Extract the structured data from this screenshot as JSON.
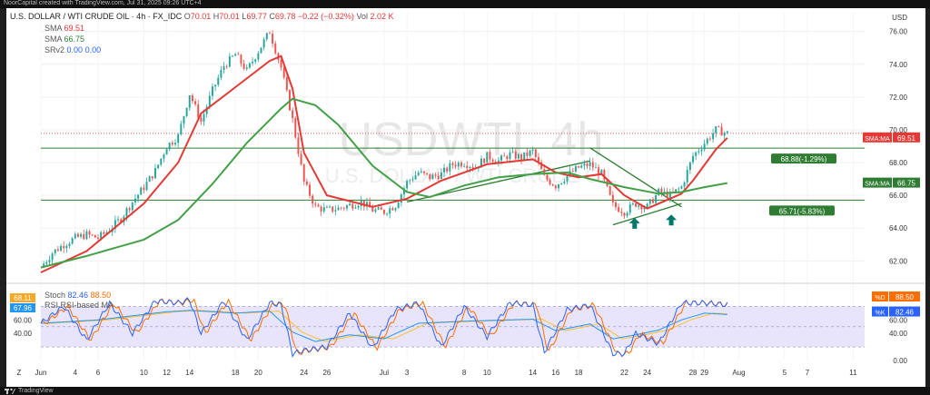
{
  "top_bar": {
    "text": "NoorCapital created with TradingView.com, Jul 31, 2025 09:26 UTC+4"
  },
  "header": {
    "symbol_line": "U.S. DOLLAR / WTI CRUDE OIL · 4h · FX_IDC",
    "ohlc": [
      {
        "k": "O",
        "v": "70.01"
      },
      {
        "k": "H",
        "v": "70.01"
      },
      {
        "k": "L",
        "v": "69.77"
      },
      {
        "k": "C",
        "v": "69.78"
      }
    ],
    "change": "−0.22 (−0.32%)",
    "vol_label": "Vol",
    "vol": "2.02 K",
    "sma1": {
      "label": "SMA",
      "value": "69.51"
    },
    "sma2": {
      "label": "SMA",
      "value": "66.75"
    },
    "srv2": {
      "label": "SRv2",
      "v1": "0.00",
      "v2": "0.00"
    },
    "stoch_line": {
      "label": "Stoch",
      "v1": "82.46",
      "v2": "88.50"
    },
    "rsi_line": {
      "label": "RSI",
      "ma_label": "RSI-based MA"
    }
  },
  "watermark": {
    "big": "USDWTI, 4h",
    "small": "U.S. DOLLAR / WTI CRUDE OIL"
  },
  "footer": {
    "brand": "TradingView"
  },
  "colors": {
    "candle_up": "#26a69a",
    "candle_down": "#ef5350",
    "sma_fast": "#e53935",
    "sma_slow": "#43a047",
    "level": "#2e7d32",
    "stoch_k": "#2962ff",
    "stoch_d": "#ff6d00",
    "rsi": "#2196f3",
    "rsi_ma": "#fbc02d"
  },
  "chart_data": {
    "type": "candlestick",
    "price_axis": {
      "unit": "USD",
      "range": [
        60.8,
        77.2
      ],
      "ticks": [
        62.0,
        64.0,
        66.0,
        68.0,
        70.0,
        72.0,
        74.0,
        76.0
      ]
    },
    "x_axis": {
      "range": [
        1,
        73
      ],
      "ticks": [
        {
          "x": 1,
          "label": "Jun"
        },
        {
          "x": 4,
          "label": "4"
        },
        {
          "x": 6,
          "label": "6"
        },
        {
          "x": 10,
          "label": "10"
        },
        {
          "x": 12,
          "label": "12"
        },
        {
          "x": 14,
          "label": "14"
        },
        {
          "x": 18,
          "label": "18"
        },
        {
          "x": 20,
          "label": "20"
        },
        {
          "x": 24,
          "label": "24"
        },
        {
          "x": 26,
          "label": "26"
        },
        {
          "x": 31,
          "label": "Jul"
        },
        {
          "x": 33,
          "label": "3"
        },
        {
          "x": 38,
          "label": "8"
        },
        {
          "x": 40,
          "label": "10"
        },
        {
          "x": 44,
          "label": "14"
        },
        {
          "x": 46,
          "label": "16"
        },
        {
          "x": 48,
          "label": "18"
        },
        {
          "x": 52,
          "label": "22"
        },
        {
          "x": 54,
          "label": "24"
        },
        {
          "x": 58,
          "label": "28"
        },
        {
          "x": 59,
          "label": "29"
        },
        {
          "x": 62,
          "label": "Aug"
        },
        {
          "x": 66,
          "label": "5"
        },
        {
          "x": 68,
          "label": "7"
        },
        {
          "x": 72,
          "label": "11"
        }
      ]
    },
    "price_anchors": [
      [
        1,
        61.6
      ],
      [
        2,
        62.5
      ],
      [
        3,
        63.0
      ],
      [
        4,
        63.4
      ],
      [
        5,
        63.6
      ],
      [
        6,
        63.4
      ],
      [
        7,
        63.9
      ],
      [
        8,
        64.6
      ],
      [
        9,
        65.6
      ],
      [
        10,
        66.5
      ],
      [
        11,
        67.5
      ],
      [
        12,
        69.0
      ],
      [
        13,
        69.6
      ],
      [
        14,
        72.2
      ],
      [
        15,
        70.5
      ],
      [
        16,
        72.4
      ],
      [
        17,
        73.9
      ],
      [
        18,
        74.6
      ],
      [
        19,
        73.6
      ],
      [
        20,
        74.8
      ],
      [
        21,
        76.0
      ],
      [
        22,
        73.8
      ],
      [
        23,
        70.6
      ],
      [
        24,
        66.8
      ],
      [
        25,
        65.3
      ],
      [
        26,
        65.1
      ],
      [
        27,
        65.2
      ],
      [
        28,
        65.4
      ],
      [
        29,
        65.6
      ],
      [
        30,
        65.1
      ],
      [
        31,
        65.0
      ],
      [
        32,
        65.4
      ],
      [
        33,
        66.8
      ],
      [
        34,
        67.4
      ],
      [
        35,
        67.1
      ],
      [
        36,
        67.3
      ],
      [
        37,
        67.9
      ],
      [
        38,
        68.0
      ],
      [
        39,
        67.7
      ],
      [
        40,
        68.4
      ],
      [
        41,
        68.1
      ],
      [
        42,
        68.5
      ],
      [
        43,
        68.3
      ],
      [
        44,
        68.7
      ],
      [
        45,
        67.1
      ],
      [
        46,
        66.6
      ],
      [
        47,
        67.2
      ],
      [
        48,
        67.7
      ],
      [
        49,
        67.9
      ],
      [
        50,
        67.3
      ],
      [
        51,
        65.4
      ],
      [
        52,
        65.0
      ],
      [
        53,
        65.5
      ],
      [
        54,
        65.3
      ],
      [
        55,
        66.2
      ],
      [
        56,
        66.0
      ],
      [
        57,
        66.5
      ],
      [
        58,
        68.4
      ],
      [
        59,
        69.2
      ],
      [
        60,
        70.0
      ],
      [
        61,
        69.78
      ]
    ],
    "series": [
      {
        "name": "SMA",
        "last": 69.51,
        "points": [
          [
            1,
            61.3
          ],
          [
            5,
            62.6
          ],
          [
            10,
            65.5
          ],
          [
            13,
            68.0
          ],
          [
            15,
            71.0
          ],
          [
            18,
            72.6
          ],
          [
            21,
            74.2
          ],
          [
            22,
            74.5
          ],
          [
            23,
            72.5
          ],
          [
            24,
            68.6
          ],
          [
            26,
            66.0
          ],
          [
            30,
            65.3
          ],
          [
            33,
            65.8
          ],
          [
            36,
            66.9
          ],
          [
            40,
            67.9
          ],
          [
            44,
            68.2
          ],
          [
            46,
            67.4
          ],
          [
            48,
            67.1
          ],
          [
            50,
            67.3
          ],
          [
            52,
            66.0
          ],
          [
            54,
            65.2
          ],
          [
            56,
            65.8
          ],
          [
            57,
            66.1
          ],
          [
            58,
            66.9
          ],
          [
            60,
            68.8
          ],
          [
            61,
            69.51
          ]
        ]
      },
      {
        "name": "SMA",
        "last": 66.75,
        "points": [
          [
            1,
            61.6
          ],
          [
            5,
            62.3
          ],
          [
            10,
            63.3
          ],
          [
            13,
            64.5
          ],
          [
            16,
            66.7
          ],
          [
            19,
            69.2
          ],
          [
            22,
            71.3
          ],
          [
            23,
            71.9
          ],
          [
            25,
            71.5
          ],
          [
            27,
            70.3
          ],
          [
            30,
            67.8
          ],
          [
            33,
            66.2
          ],
          [
            35,
            65.9
          ],
          [
            38,
            66.6
          ],
          [
            41,
            67.1
          ],
          [
            44,
            67.3
          ],
          [
            47,
            67.4
          ],
          [
            49,
            67.0
          ],
          [
            52,
            66.5
          ],
          [
            55,
            66.1
          ],
          [
            57,
            66.2
          ],
          [
            59,
            66.5
          ],
          [
            61,
            66.75
          ]
        ]
      }
    ],
    "horizontal_levels": [
      {
        "y": 68.88,
        "label": "68.88(-1.29%)"
      },
      {
        "y": 65.71,
        "label": "65.71(-5.83%)"
      }
    ],
    "trendlines": [
      [
        [
          49,
          68.9
        ],
        [
          57,
          65.3
        ]
      ],
      [
        [
          51,
          64.2
        ],
        [
          57,
          65.5
        ]
      ],
      [
        [
          33,
          65.6
        ],
        [
          49,
          68.1
        ]
      ]
    ],
    "arrows": [
      {
        "x": 52.9,
        "y": 64.3
      },
      {
        "x": 56.1,
        "y": 64.5
      }
    ],
    "price_labels": [
      {
        "label": "SMA:MA",
        "value": 69.51
      },
      {
        "label": "SMA:MA",
        "value": 66.75
      }
    ],
    "oscillator": {
      "range": [
        0,
        110
      ],
      "ticks": [
        0.0,
        40.0,
        60.0
      ],
      "band": [
        20,
        80
      ],
      "values": [
        {
          "name": "%D",
          "value": 88.5
        },
        {
          "name": "%K",
          "value": 82.46
        }
      ],
      "left_labels": [
        68.11,
        67.96,
        60.0,
        40.0
      ],
      "k_anchors": [
        [
          1,
          55
        ],
        [
          3,
          80
        ],
        [
          5,
          30
        ],
        [
          7,
          85
        ],
        [
          9,
          40
        ],
        [
          11,
          88
        ],
        [
          13,
          85
        ],
        [
          14,
          90
        ],
        [
          15,
          40
        ],
        [
          17,
          88
        ],
        [
          19,
          30
        ],
        [
          21,
          85
        ],
        [
          22,
          82
        ],
        [
          23,
          10
        ],
        [
          24,
          15
        ],
        [
          26,
          20
        ],
        [
          28,
          70
        ],
        [
          30,
          18
        ],
        [
          32,
          75
        ],
        [
          34,
          85
        ],
        [
          36,
          20
        ],
        [
          38,
          80
        ],
        [
          40,
          35
        ],
        [
          42,
          85
        ],
        [
          44,
          82
        ],
        [
          45,
          12
        ],
        [
          47,
          75
        ],
        [
          49,
          82
        ],
        [
          51,
          10
        ],
        [
          52,
          10
        ],
        [
          53,
          40
        ],
        [
          55,
          25
        ],
        [
          57,
          85
        ],
        [
          59,
          85
        ],
        [
          61,
          82
        ]
      ],
      "rsi_anchors": [
        [
          1,
          55
        ],
        [
          6,
          60
        ],
        [
          12,
          72
        ],
        [
          14,
          74
        ],
        [
          18,
          70
        ],
        [
          21,
          73
        ],
        [
          23,
          42
        ],
        [
          25,
          28
        ],
        [
          28,
          38
        ],
        [
          31,
          32
        ],
        [
          34,
          55
        ],
        [
          38,
          58
        ],
        [
          42,
          60
        ],
        [
          44,
          61
        ],
        [
          46,
          44
        ],
        [
          49,
          54
        ],
        [
          51,
          32
        ],
        [
          53,
          38
        ],
        [
          55,
          45
        ],
        [
          57,
          60
        ],
        [
          59,
          70
        ],
        [
          61,
          68
        ]
      ]
    }
  }
}
